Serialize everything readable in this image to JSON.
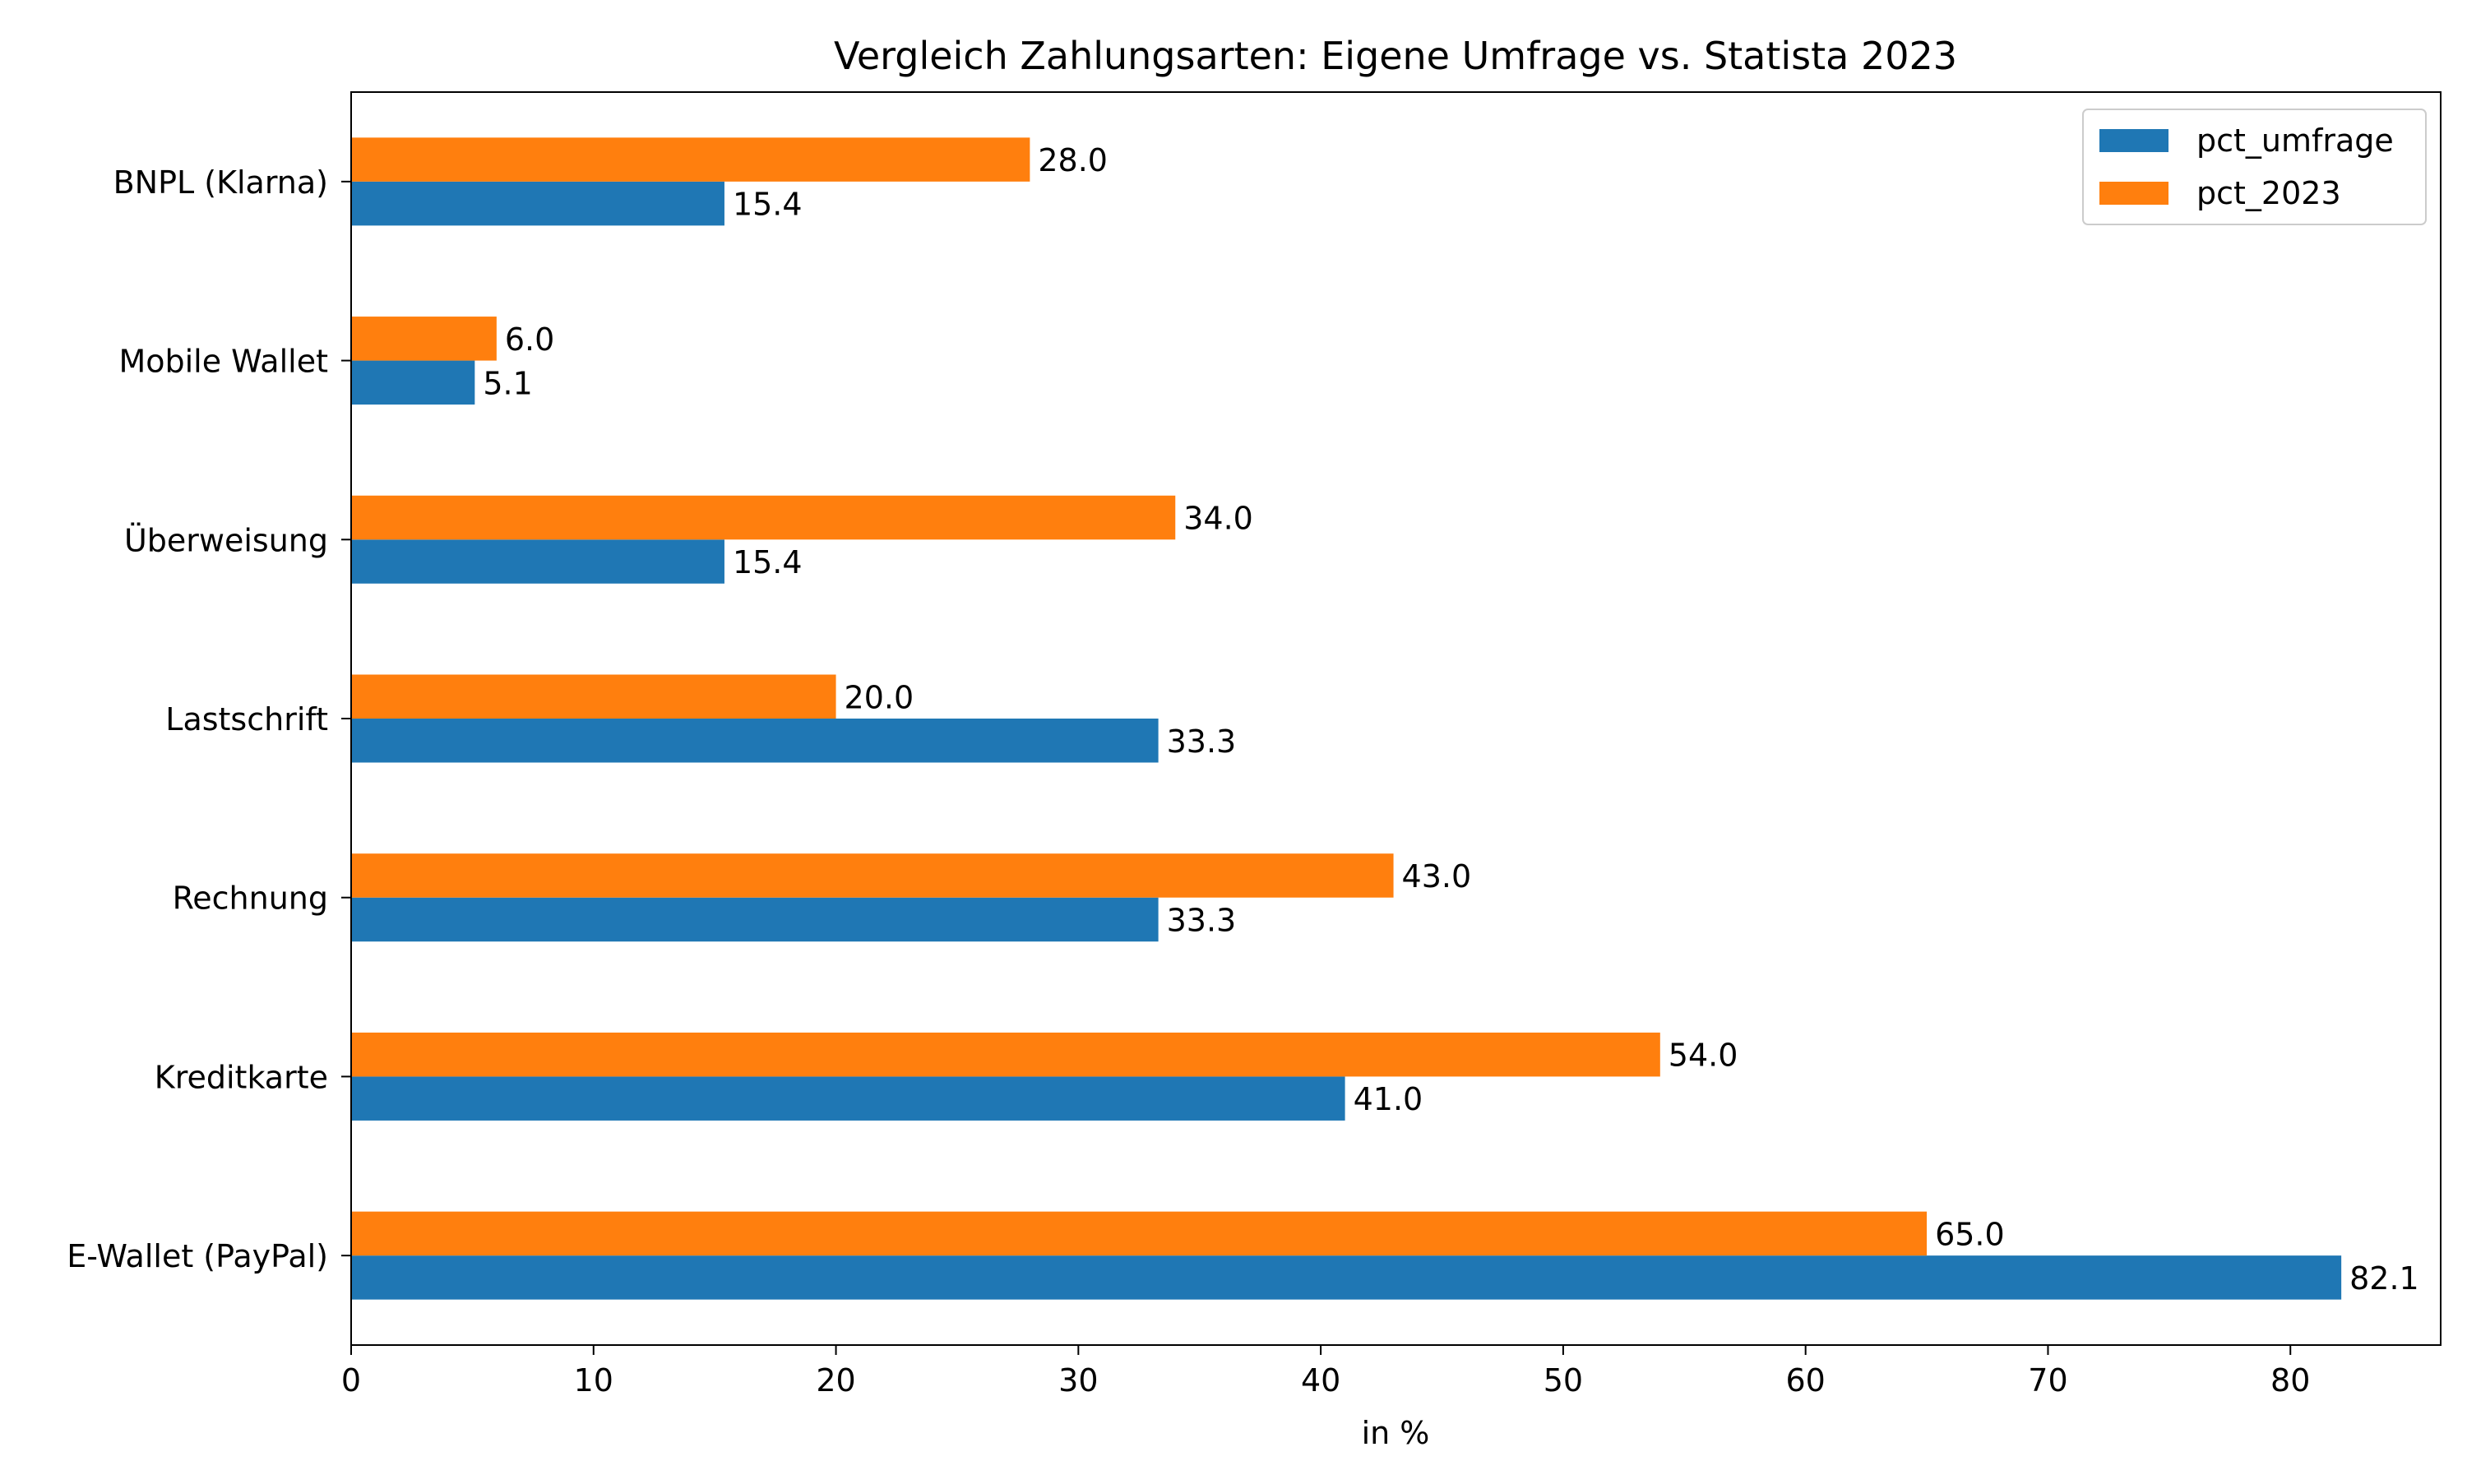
{
  "chart_data": {
    "type": "bar",
    "orientation": "horizontal",
    "title": "Vergleich Zahlungsarten: Eigene Umfrage vs. Statista 2023",
    "xlabel": "in %",
    "ylabel": "",
    "xlim": [
      0,
      86.2
    ],
    "x_ticks": [
      0,
      10,
      20,
      30,
      40,
      50,
      60,
      70,
      80
    ],
    "categories": [
      "E-Wallet (PayPal)",
      "Kreditkarte",
      "Rechnung",
      "Lastschrift",
      "Überweisung",
      "Mobile Wallet",
      "BNPL (Klarna)"
    ],
    "series": [
      {
        "name": "pct_umfrage",
        "color": "#1f77b4",
        "values": [
          82.1,
          41.0,
          33.3,
          33.3,
          15.4,
          5.1,
          15.4
        ],
        "labels": [
          "82.1",
          "41.0",
          "33.3",
          "33.3",
          "15.4",
          "5.1",
          "15.4"
        ]
      },
      {
        "name": "pct_2023",
        "color": "#ff7f0e",
        "values": [
          65.0,
          54.0,
          43.0,
          20.0,
          34.0,
          6.0,
          28.0
        ],
        "labels": [
          "65.0",
          "54.0",
          "43.0",
          "20.0",
          "34.0",
          "6.0",
          "28.0"
        ]
      }
    ],
    "legend": {
      "position": "top-right",
      "entries": [
        "pct_umfrage",
        "pct_2023"
      ]
    },
    "grid": false
  }
}
